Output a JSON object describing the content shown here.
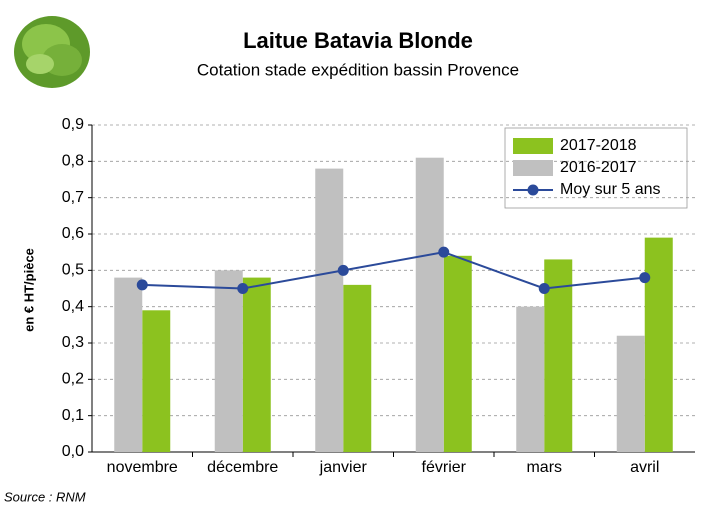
{
  "chart_data": {
    "type": "bar",
    "title": "Laitue Batavia Blonde",
    "subtitle": "Cotation stade expédition bassin Provence",
    "y_label": "en € HT/pièce",
    "source": "Source : RNM",
    "categories": [
      "novembre",
      "décembre",
      "janvier",
      "février",
      "mars",
      "avril"
    ],
    "series": [
      {
        "name": "2017-2018",
        "type": "bar",
        "color": "#8cc21f",
        "values": [
          0.39,
          0.48,
          0.46,
          0.54,
          0.53,
          0.59
        ]
      },
      {
        "name": "2016-2017",
        "type": "bar",
        "color": "#c0c0c0",
        "values": [
          0.48,
          0.5,
          0.78,
          0.81,
          0.4,
          0.32
        ]
      },
      {
        "name": "Moy sur 5 ans",
        "type": "line",
        "color": "#2b4a9a",
        "values": [
          0.46,
          0.45,
          0.5,
          0.55,
          0.45,
          0.48
        ]
      }
    ],
    "ylim": [
      0,
      0.9
    ],
    "yticks": [
      {
        "value": 0,
        "label": "0,0"
      },
      {
        "value": 0.1,
        "label": "0,1"
      },
      {
        "value": 0.2,
        "label": "0,2"
      },
      {
        "value": 0.3,
        "label": "0,3"
      },
      {
        "value": 0.4,
        "label": "0,4"
      },
      {
        "value": 0.5,
        "label": "0,5"
      },
      {
        "value": 0.6,
        "label": "0,6"
      },
      {
        "value": 0.7,
        "label": "0,7"
      },
      {
        "value": 0.8,
        "label": "0,8"
      },
      {
        "value": 0.9,
        "label": "0,9"
      }
    ],
    "grid": true,
    "legend": "top-right"
  }
}
